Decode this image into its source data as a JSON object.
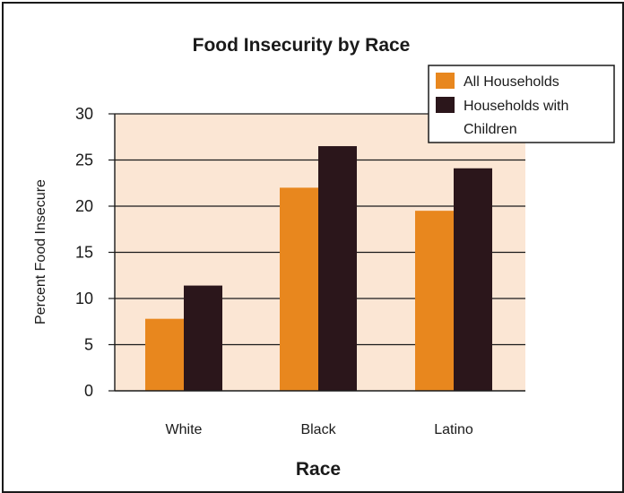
{
  "chart_data": {
    "type": "bar",
    "title": "Food Insecurity by Race",
    "xlabel": "Race",
    "ylabel": "Percent Food Insecure",
    "categories": [
      "White",
      "Black",
      "Latino"
    ],
    "series": [
      {
        "name": "All Households",
        "values": [
          7.8,
          22.0,
          19.5
        ],
        "color": "#e8871e"
      },
      {
        "name": "Households with Children",
        "values": [
          11.4,
          26.5,
          24.1
        ],
        "color": "#2b161b"
      }
    ],
    "ylim": [
      0,
      30
    ],
    "yticks": [
      "0",
      "5",
      "10",
      "15",
      "20",
      "25",
      "30"
    ],
    "grid": true,
    "plot_background": "#fbe6d4",
    "legend_position": "top-right",
    "legend_labels": [
      "All Households",
      "Households with",
      "Children"
    ]
  }
}
